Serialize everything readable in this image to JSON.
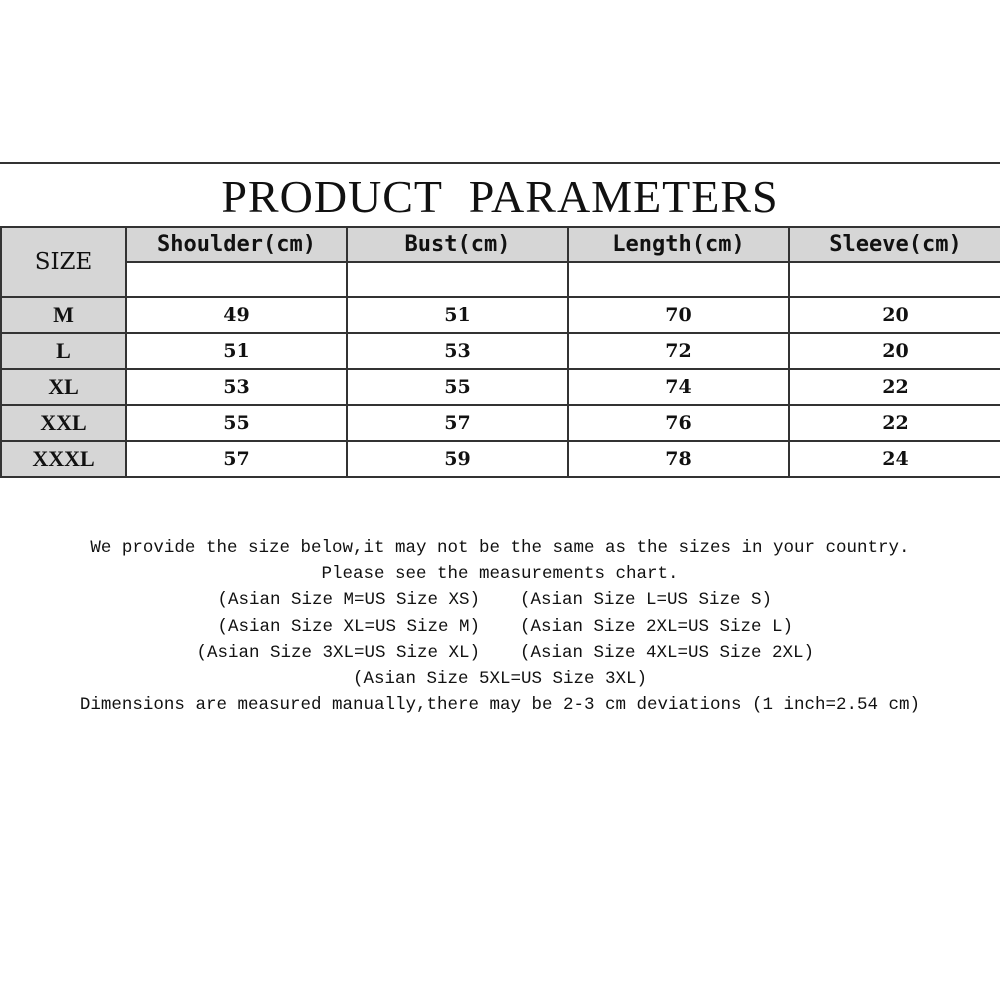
{
  "title": "PRODUCT PARAMETERS",
  "table": {
    "size_header": "SIZE",
    "columns": [
      "Shoulder(cm)",
      "Bust(cm)",
      "Length(cm)",
      "Sleeve(cm)"
    ],
    "rows": [
      {
        "size": "M",
        "values": [
          "49",
          "51",
          "70",
          "20"
        ]
      },
      {
        "size": "L",
        "values": [
          "51",
          "53",
          "72",
          "20"
        ]
      },
      {
        "size": "XL",
        "values": [
          "53",
          "55",
          "74",
          "22"
        ]
      },
      {
        "size": "XXL",
        "values": [
          "55",
          "57",
          "76",
          "22"
        ]
      },
      {
        "size": "XXXL",
        "values": [
          "57",
          "59",
          "78",
          "24"
        ]
      }
    ]
  },
  "notes": {
    "line1": "We provide the size below,it may not be the same as the sizes in your country.",
    "line2": "Please see the measurements chart.",
    "pairs": [
      [
        "(Asian Size M=US Size XS)",
        "(Asian Size L=US Size S)"
      ],
      [
        "(Asian Size XL=US Size M)",
        "(Asian Size 2XL=US Size L)"
      ],
      [
        "(Asian Size 3XL=US Size XL)",
        "(Asian Size 4XL=US Size 2XL)"
      ]
    ],
    "line_single": "(Asian Size 5XL=US Size 3XL)",
    "line_last": "Dimensions are measured manually,there may be 2-3 cm deviations (1 inch=2.54 cm)"
  }
}
